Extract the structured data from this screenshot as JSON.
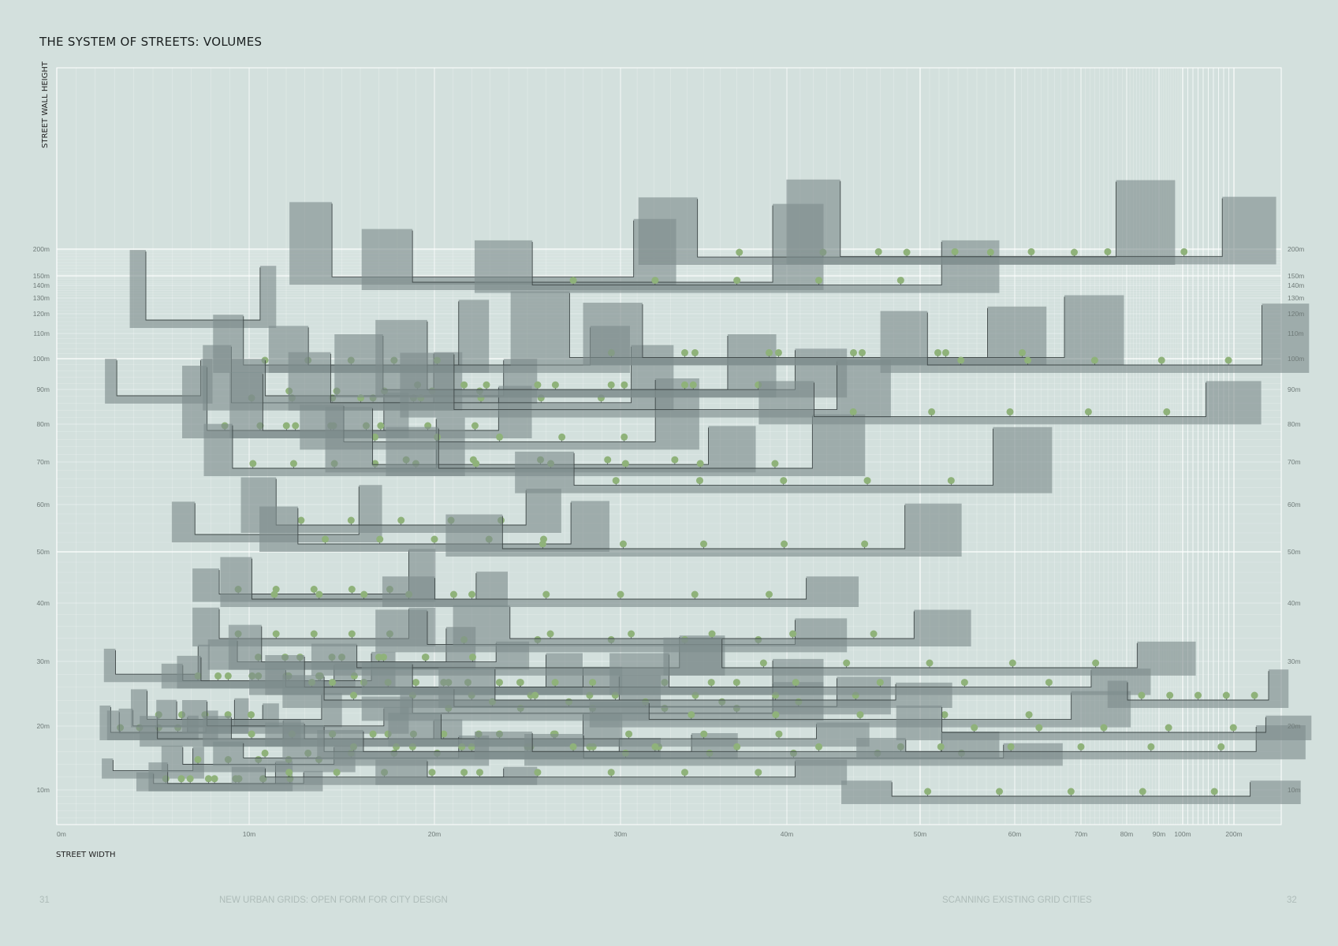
{
  "page": {
    "title": "THE SYSTEM OF STREETS: VOLUMES",
    "page_left": "31",
    "page_right": "32",
    "footer_left": "NEW URBAN GRIDS: OPEN FORM FOR CITY DESIGN",
    "footer_right": "SCANNING EXISTING GRID CITIES"
  },
  "colors": {
    "background": "#d3e0dd",
    "volume": "#7e8d8d",
    "section_line": "#3e4747",
    "tree": "#8fb27a",
    "grid": "#ffffff"
  },
  "chart_data": {
    "type": "scatter",
    "title": "",
    "xlabel": "STREET WIDTH",
    "ylabel": "STREET WALL HEIGHT",
    "x_scale": "nonlinear",
    "y_scale": "nonlinear",
    "x_ticks": [
      {
        "v": 0,
        "label": "0m"
      },
      {
        "v": 10,
        "label": "10m"
      },
      {
        "v": 20,
        "label": "20m"
      },
      {
        "v": 30,
        "label": "30m"
      },
      {
        "v": 40,
        "label": "40m"
      },
      {
        "v": 50,
        "label": "50m"
      },
      {
        "v": 60,
        "label": "60m"
      },
      {
        "v": 70,
        "label": "70m"
      },
      {
        "v": 80,
        "label": "80m"
      },
      {
        "v": 90,
        "label": "90m"
      },
      {
        "v": 100,
        "label": "100m"
      },
      {
        "v": 200,
        "label": "200m"
      }
    ],
    "y_ticks": [
      {
        "v": 10,
        "label": "10m"
      },
      {
        "v": 20,
        "label": "20m"
      },
      {
        "v": 30,
        "label": "30m"
      },
      {
        "v": 40,
        "label": "40m"
      },
      {
        "v": 50,
        "label": "50m"
      },
      {
        "v": 60,
        "label": "60m"
      },
      {
        "v": 70,
        "label": "70m"
      },
      {
        "v": 80,
        "label": "80m"
      },
      {
        "v": 90,
        "label": "90m"
      },
      {
        "v": 100,
        "label": "100m"
      },
      {
        "v": 110,
        "label": "110m"
      },
      {
        "v": 120,
        "label": "120m"
      },
      {
        "v": 130,
        "label": "130m"
      },
      {
        "v": 140,
        "label": "140m"
      },
      {
        "v": 150,
        "label": "150m"
      },
      {
        "v": 200,
        "label": "200m"
      }
    ],
    "streets": [
      {
        "w": 5.3,
        "h": 90,
        "t": 0
      },
      {
        "w": 7.6,
        "h": 120,
        "t": 0
      },
      {
        "w": 5.2,
        "h": 29,
        "t": 0
      },
      {
        "w": 5.0,
        "h": 14,
        "t": 0
      },
      {
        "w": 4.8,
        "h": 20,
        "t": 1
      },
      {
        "w": 5.5,
        "h": 20,
        "t": 0
      },
      {
        "w": 6.6,
        "h": 21,
        "t": 0
      },
      {
        "w": 7.7,
        "h": 22,
        "t": 1
      },
      {
        "w": 8.5,
        "h": 19,
        "t": 0
      },
      {
        "w": 10.0,
        "h": 22,
        "t": 0
      },
      {
        "w": 10.5,
        "h": 28,
        "t": 1
      },
      {
        "w": 12.5,
        "h": 21,
        "t": 0
      },
      {
        "w": 12.0,
        "h": 28,
        "t": 1
      },
      {
        "w": 8.2,
        "h": 12,
        "t": 1
      },
      {
        "w": 9.3,
        "h": 12,
        "t": 1
      },
      {
        "w": 10.5,
        "h": 15,
        "t": 1
      },
      {
        "w": 11.5,
        "h": 55,
        "t": 0
      },
      {
        "w": 12.5,
        "h": 80,
        "t": 1
      },
      {
        "w": 14.5,
        "h": 88,
        "t": 1
      },
      {
        "w": 15.5,
        "h": 100,
        "t": 1
      },
      {
        "w": 17.3,
        "h": 90,
        "t": 1
      },
      {
        "w": 17.1,
        "h": 80,
        "t": 1
      },
      {
        "w": 14.6,
        "h": 70,
        "t": 1
      },
      {
        "w": 13.5,
        "h": 43,
        "t": 1
      },
      {
        "w": 16.2,
        "h": 42,
        "t": 1
      },
      {
        "w": 13.5,
        "h": 35,
        "t": 1
      },
      {
        "w": 15.0,
        "h": 31,
        "t": 1
      },
      {
        "w": 17.0,
        "h": 31,
        "t": 1
      },
      {
        "w": 14.5,
        "h": 19,
        "t": 1
      },
      {
        "w": 15.5,
        "h": 16,
        "t": 1
      },
      {
        "w": 17.3,
        "h": 13,
        "t": 1
      },
      {
        "w": 18.2,
        "h": 57,
        "t": 1
      },
      {
        "w": 20.0,
        "h": 53,
        "t": 1
      },
      {
        "w": 19.0,
        "h": 27,
        "t": 1
      },
      {
        "w": 20.5,
        "h": 27,
        "t": 1
      },
      {
        "w": 22.0,
        "h": 25,
        "t": 1
      },
      {
        "w": 20.5,
        "h": 19,
        "t": 1
      },
      {
        "w": 22.0,
        "h": 17,
        "t": 1
      },
      {
        "w": 25.0,
        "h": 17,
        "t": 1
      },
      {
        "w": 24.5,
        "h": 30,
        "t": 0
      },
      {
        "w": 20.8,
        "h": 100,
        "t": 0
      },
      {
        "w": 22.6,
        "h": 160,
        "t": 0
      },
      {
        "w": 22.5,
        "h": 88,
        "t": 1
      },
      {
        "w": 23.5,
        "h": 77,
        "t": 1
      },
      {
        "w": 25.7,
        "h": 71,
        "t": 1
      },
      {
        "w": 26.5,
        "h": 92,
        "t": 1
      },
      {
        "w": 28.5,
        "h": 150,
        "t": 0
      },
      {
        "w": 29.5,
        "h": 92,
        "t": 1
      },
      {
        "w": 31.5,
        "h": 86,
        "t": 0
      },
      {
        "w": 30.3,
        "h": 70,
        "t": 1
      },
      {
        "w": 30.0,
        "h": 42,
        "t": 1
      },
      {
        "w": 29.5,
        "h": 34,
        "t": 1
      },
      {
        "w": 28.5,
        "h": 27,
        "t": 1
      },
      {
        "w": 28.5,
        "h": 23,
        "t": 1
      },
      {
        "w": 30.5,
        "h": 19,
        "t": 1
      },
      {
        "w": 29.5,
        "h": 13,
        "t": 1
      },
      {
        "w": 31.5,
        "h": 24,
        "t": 1
      },
      {
        "w": 34.5,
        "h": 25,
        "t": 1
      },
      {
        "w": 35.5,
        "h": 35,
        "t": 1
      },
      {
        "w": 35.0,
        "h": 52,
        "t": 1
      },
      {
        "w": 37.0,
        "h": 147,
        "t": 1
      },
      {
        "w": 39.5,
        "h": 103,
        "t": 1
      },
      {
        "w": 45.0,
        "h": 103,
        "t": 1
      },
      {
        "w": 39.8,
        "h": 66,
        "t": 1
      },
      {
        "w": 40.5,
        "h": 16,
        "t": 1
      },
      {
        "w": 37.0,
        "h": 17,
        "t": 1
      },
      {
        "w": 45.5,
        "h": 22,
        "t": 1
      },
      {
        "w": 47.0,
        "h": 27,
        "t": 1
      },
      {
        "w": 51.0,
        "h": 30,
        "t": 1
      },
      {
        "w": 49.0,
        "h": 197,
        "t": 1
      },
      {
        "w": 59.5,
        "h": 84,
        "t": 1
      },
      {
        "w": 62.5,
        "h": 198,
        "t": 1
      },
      {
        "w": 73.0,
        "h": 100,
        "t": 1
      },
      {
        "w": 70.0,
        "h": 17,
        "t": 1
      },
      {
        "w": 75.0,
        "h": 20,
        "t": 1
      },
      {
        "w": 68.5,
        "h": 10,
        "t": 1
      },
      {
        "w": 130.0,
        "h": 25,
        "t": 1
      }
    ]
  }
}
